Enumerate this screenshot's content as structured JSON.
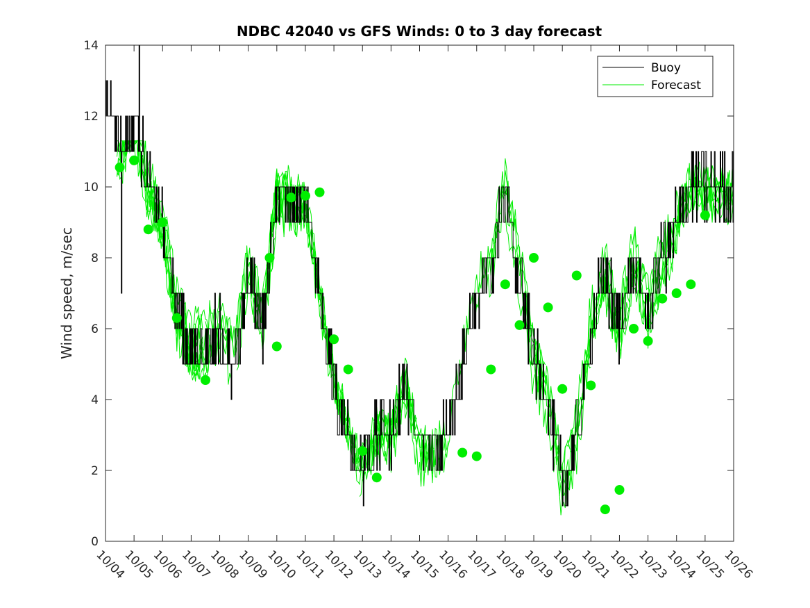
{
  "chart_data": {
    "type": "line",
    "title": "NDBC 42040 vs GFS Winds: 0 to 3 day forecast",
    "xlabel": "",
    "ylabel": "Wind speed, m/sec",
    "xlim": [
      0,
      22
    ],
    "ylim": [
      0,
      14
    ],
    "yticks": [
      0,
      2,
      4,
      6,
      8,
      10,
      12,
      14
    ],
    "xtick_labels": [
      "10/04",
      "10/05",
      "10/06",
      "10/07",
      "10/08",
      "10/09",
      "10/10",
      "10/11",
      "10/12",
      "10/13",
      "10/14",
      "10/15",
      "10/16",
      "10/17",
      "10/18",
      "10/19",
      "10/20",
      "10/21",
      "10/22",
      "10/23",
      "10/24",
      "10/25",
      "10/26"
    ],
    "legend": {
      "position": "top-right",
      "entries": [
        "Buoy",
        "Forecast"
      ]
    },
    "colors": {
      "buoy": "#000000",
      "forecast": "#00ee00",
      "axis": "#262626"
    },
    "buoy_trend": {
      "x": [
        0,
        0.5,
        1,
        1.5,
        2,
        2.5,
        3,
        3.5,
        4,
        4.5,
        5,
        5.5,
        6,
        6.5,
        7,
        7.5,
        8,
        8.5,
        9,
        9.5,
        10,
        10.5,
        11,
        11.5,
        12,
        12.5,
        13,
        13.5,
        14,
        14.5,
        15,
        15.5,
        16,
        16.5,
        17,
        17.5,
        18,
        18.5,
        19,
        19.5,
        20,
        20.5,
        21,
        21.5,
        22
      ],
      "values": [
        12.5,
        11,
        12,
        10,
        9,
        6.5,
        5.5,
        5.5,
        6,
        5,
        7.5,
        6,
        9.5,
        9.5,
        9.5,
        7,
        4.5,
        3,
        2,
        3,
        3,
        4.5,
        2.5,
        2.5,
        3,
        5,
        7,
        7.5,
        10,
        7.5,
        5,
        4,
        1.5,
        3,
        6,
        7.5,
        6,
        8,
        6.5,
        8,
        9,
        10,
        10,
        10,
        10
      ]
    },
    "markers": {
      "x": [
        0.5,
        1,
        1.5,
        2,
        2.5,
        3.5,
        5.75,
        6,
        6.5,
        7,
        7.5,
        8,
        8.5,
        9,
        9.5,
        12.5,
        13,
        13.5,
        14,
        14.5,
        15,
        15.5,
        16,
        16.5,
        17,
        17.5,
        18,
        18.5,
        19,
        19.5,
        20,
        20.5,
        21
      ],
      "values": [
        10.55,
        10.75,
        8.8,
        9.0,
        6.3,
        4.55,
        8.0,
        5.5,
        9.7,
        9.75,
        9.85,
        5.7,
        4.85,
        2.55,
        1.8,
        2.5,
        2.4,
        4.85,
        7.25,
        6.1,
        8.0,
        6.6,
        4.3,
        7.5,
        4.4,
        0.9,
        1.45,
        6.0,
        5.65,
        6.85,
        7.0,
        7.25,
        9.2
      ]
    }
  }
}
